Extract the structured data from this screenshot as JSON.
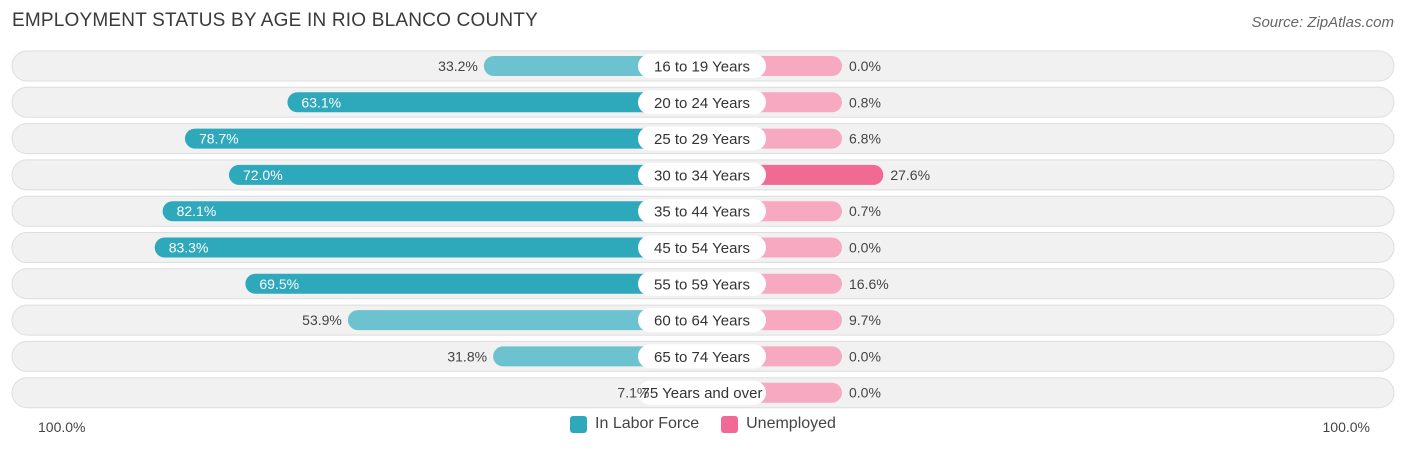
{
  "chart_data": {
    "type": "bar",
    "orientation": "horizontal-diverging",
    "title": "EMPLOYMENT STATUS BY AGE IN RIO BLANCO COUNTY",
    "source": "Source: ZipAtlas.com",
    "categories": [
      "16 to 19 Years",
      "20 to 24 Years",
      "25 to 29 Years",
      "30 to 34 Years",
      "35 to 44 Years",
      "45 to 54 Years",
      "55 to 59 Years",
      "60 to 64 Years",
      "65 to 74 Years",
      "75 Years and over"
    ],
    "series": [
      {
        "name": "In Labor Force",
        "values": [
          33.2,
          63.1,
          78.7,
          72.0,
          82.1,
          83.3,
          69.5,
          53.9,
          31.8,
          7.1
        ],
        "labels": [
          "33.2%",
          "63.1%",
          "78.7%",
          "72.0%",
          "82.1%",
          "83.3%",
          "69.5%",
          "53.9%",
          "31.8%",
          "7.1%"
        ],
        "color": "#2ea8bb",
        "color_light": "#6cc3cf"
      },
      {
        "name": "Unemployed",
        "values": [
          0.0,
          0.8,
          6.8,
          27.6,
          0.7,
          0.0,
          16.6,
          9.7,
          0.0,
          0.0
        ],
        "labels": [
          "0.0%",
          "0.8%",
          "6.8%",
          "27.6%",
          "0.7%",
          "0.0%",
          "16.6%",
          "9.7%",
          "0.0%",
          "0.0%"
        ],
        "color": "#f06a93",
        "color_light": "#f6a9c0"
      }
    ],
    "axis_left_label": "100.0%",
    "axis_right_label": "100.0%",
    "xlim": [
      -100,
      100
    ],
    "legend_position": "bottom-center"
  }
}
